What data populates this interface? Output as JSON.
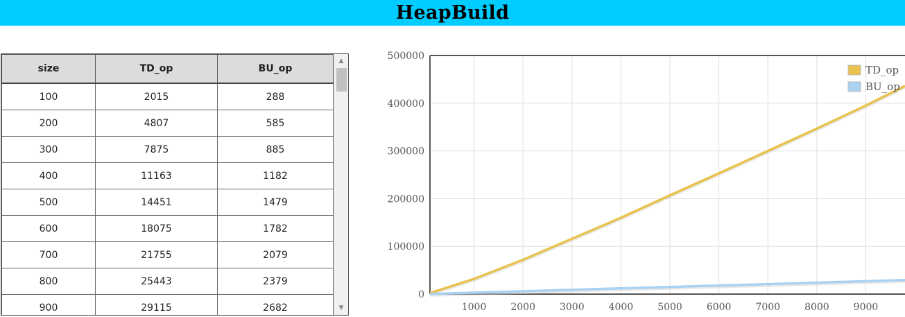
{
  "header": {
    "title": "HeapBuild"
  },
  "table": {
    "columns": [
      "size",
      "TD_op",
      "BU_op"
    ],
    "rows": [
      [
        "100",
        "2015",
        "288"
      ],
      [
        "200",
        "4807",
        "585"
      ],
      [
        "300",
        "7875",
        "885"
      ],
      [
        "400",
        "11163",
        "1182"
      ],
      [
        "500",
        "14451",
        "1479"
      ],
      [
        "600",
        "18075",
        "1782"
      ],
      [
        "700",
        "21755",
        "2079"
      ],
      [
        "800",
        "25443",
        "2379"
      ],
      [
        "900",
        "29115",
        "2682"
      ]
    ]
  },
  "chart_data": {
    "type": "line",
    "x_ticks": [
      1000,
      2000,
      3000,
      4000,
      5000,
      6000,
      7000,
      8000,
      9000
    ],
    "y_ticks": [
      0,
      100000,
      200000,
      300000,
      400000,
      500000
    ],
    "xlim": [
      100,
      9800
    ],
    "ylim": [
      0,
      500000
    ],
    "grid": true,
    "legend_position": "top-right",
    "series": [
      {
        "name": "TD_op",
        "color": "#e8c24d",
        "x": [
          100,
          1000,
          2000,
          3000,
          4000,
          5000,
          6000,
          7000,
          8000,
          9000,
          9800
        ],
        "y": [
          2015,
          32000,
          72000,
          116000,
          160000,
          207000,
          253000,
          300000,
          347000,
          395000,
          436000
        ]
      },
      {
        "name": "BU_op",
        "color": "#a9d1f2",
        "x": [
          100,
          1000,
          2000,
          3000,
          4000,
          5000,
          6000,
          7000,
          8000,
          9000,
          9800
        ],
        "y": [
          288,
          3000,
          6000,
          9000,
          12000,
          15000,
          18000,
          21000,
          24000,
          27000,
          29500
        ]
      }
    ]
  }
}
